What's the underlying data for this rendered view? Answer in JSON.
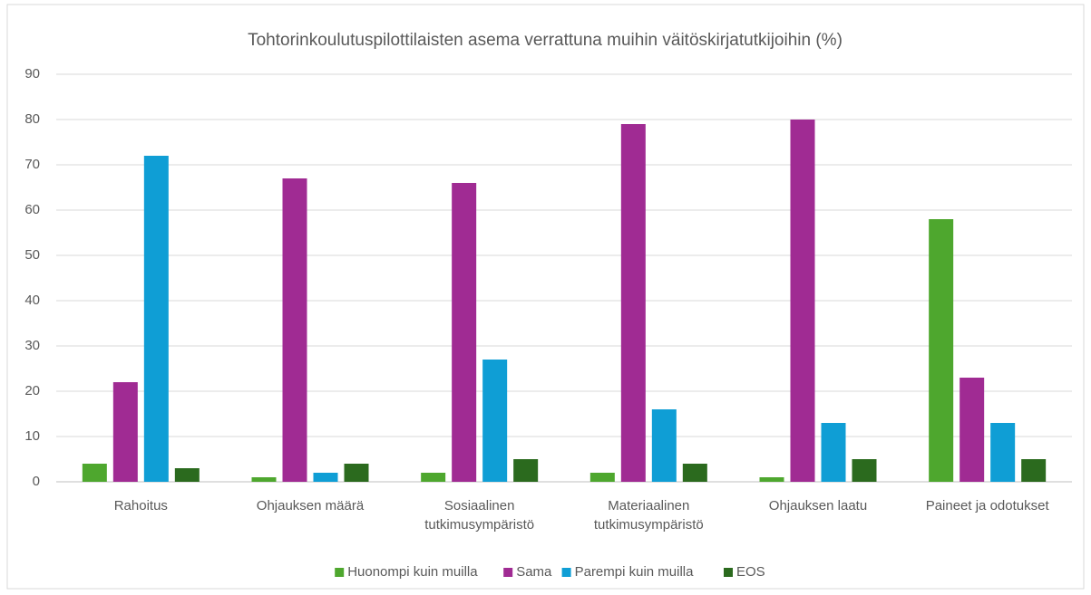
{
  "chart_data": {
    "type": "bar",
    "title": "Tohtorinkoulutuspilottilaisten asema verrattuna muihin väitöskirjatutkijoihin (%)",
    "categories": [
      "Rahoitus",
      "Ohjauksen määrä",
      "Sosiaalinen tutkimusympäristö",
      "Materiaalinen tutkimusympäristö",
      "Ohjauksen laatu",
      "Paineet ja odotukset"
    ],
    "series": [
      {
        "name": "Huonompi kuin muilla",
        "color": "#4ea72e",
        "values": [
          4,
          1,
          2,
          2,
          1,
          58
        ]
      },
      {
        "name": "Sama",
        "color": "#a02b93",
        "values": [
          22,
          67,
          66,
          79,
          80,
          23
        ]
      },
      {
        "name": "Parempi kuin muilla",
        "color": "#0f9ed5",
        "values": [
          72,
          2,
          27,
          16,
          13,
          13
        ]
      },
      {
        "name": "EOS",
        "color": "#2b6a1e",
        "values": [
          3,
          4,
          5,
          4,
          5,
          5
        ]
      }
    ],
    "ylim": [
      0,
      90
    ],
    "yticks": [
      0,
      10,
      20,
      30,
      40,
      50,
      60,
      70,
      80,
      90
    ],
    "grid": true,
    "legend": "bottom"
  }
}
